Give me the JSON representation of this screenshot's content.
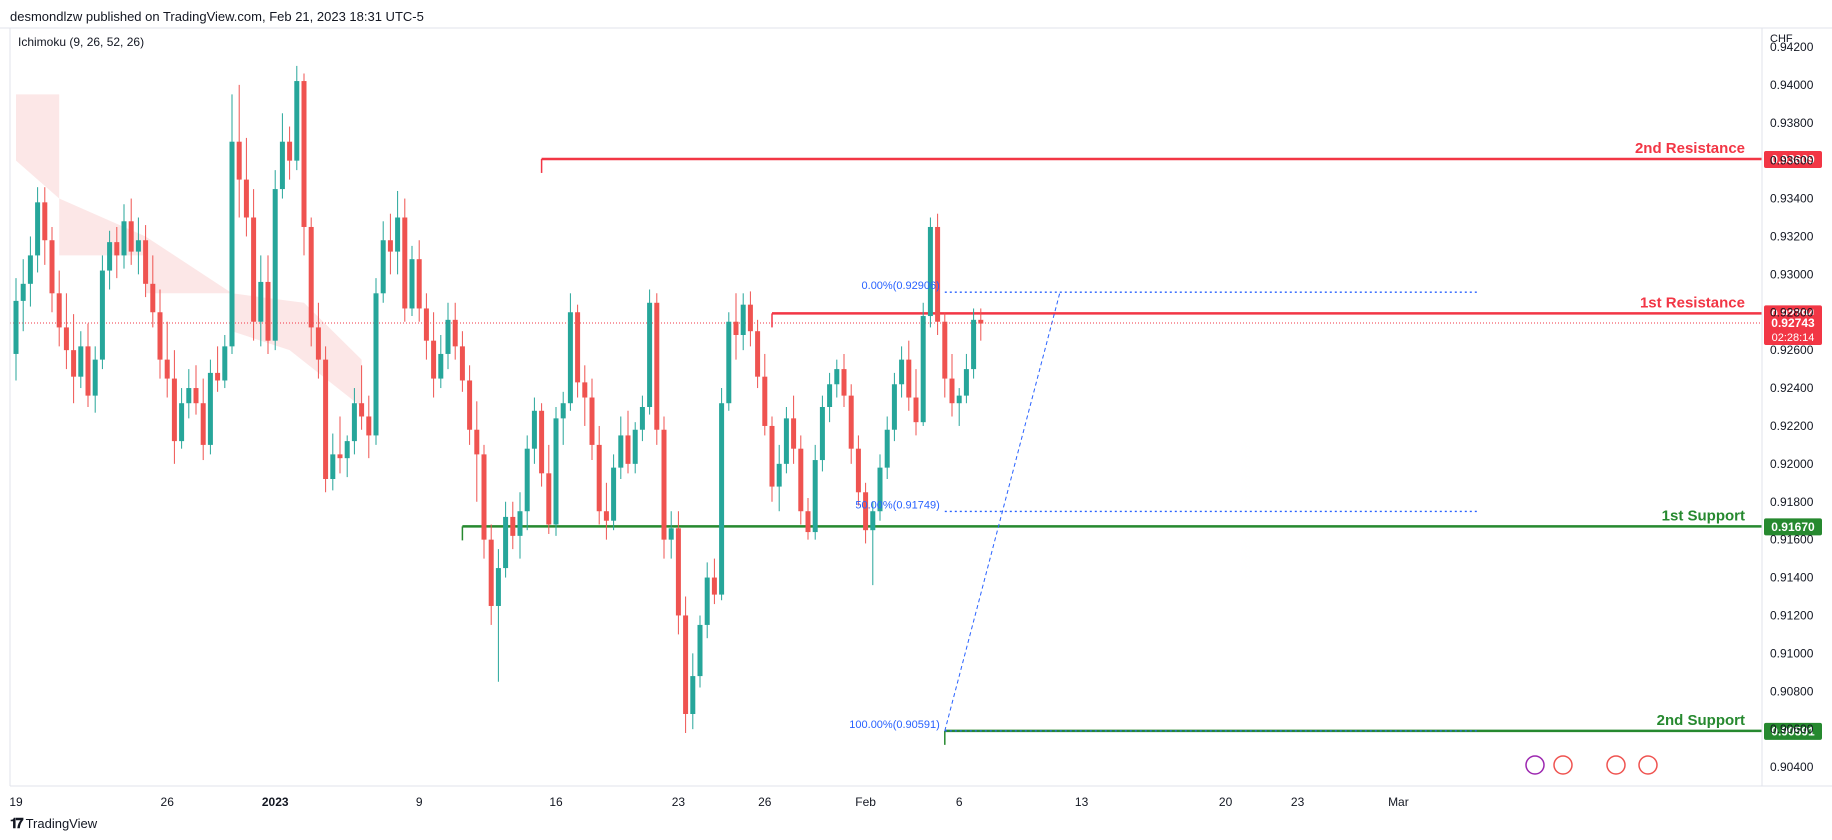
{
  "header": {
    "publisher": "desmondlzw published on TradingView.com, Feb 21, 2023 18:31 UTC-5",
    "indicator": "Ichimoku (9, 26, 52, 26)"
  },
  "footer": {
    "brand": "TradingView"
  },
  "colors": {
    "up": "#26a69a",
    "down": "#ef5350",
    "resistance": "#f23645",
    "support": "#26892f",
    "fib": "#2962ff",
    "cloud_red": "#fce4e4",
    "cloud_green": "#e6f3e9",
    "axis_text": "#131722",
    "current": "#f23645"
  },
  "chart_data": {
    "type": "candlestick",
    "currency": "CHF",
    "ylim": [
      0.903,
      0.943
    ],
    "y_ticks": [
      "0.94200",
      "0.94000",
      "0.93800",
      "0.93600",
      "0.93400",
      "0.93200",
      "0.93000",
      "0.92800",
      "0.92600",
      "0.92400",
      "0.92200",
      "0.92000",
      "0.91800",
      "0.91600",
      "0.91400",
      "0.91200",
      "0.91000",
      "0.90800",
      "0.90600",
      "0.90400"
    ],
    "x_ticks": [
      {
        "label": "19",
        "bar": 0
      },
      {
        "label": "26",
        "bar": 21
      },
      {
        "label": "2023",
        "bar": 36
      },
      {
        "label": "9",
        "bar": 56
      },
      {
        "label": "16",
        "bar": 75
      },
      {
        "label": "23",
        "bar": 92
      },
      {
        "label": "26",
        "bar": 104
      },
      {
        "label": "Feb",
        "bar": 118
      },
      {
        "label": "6",
        "bar": 131
      },
      {
        "label": "13",
        "bar": 148
      },
      {
        "label": "20",
        "bar": 168
      },
      {
        "label": "23",
        "bar": 178
      },
      {
        "label": "Mar",
        "bar": 192
      }
    ],
    "bar_start_date": "2022-12-17",
    "bar_hours": 4,
    "candles": [
      [
        0.9258,
        0.9298,
        0.9244,
        0.9286
      ],
      [
        0.9286,
        0.9308,
        0.927,
        0.9295
      ],
      [
        0.9295,
        0.932,
        0.9283,
        0.931
      ],
      [
        0.931,
        0.9346,
        0.9301,
        0.9338
      ],
      [
        0.9338,
        0.9346,
        0.9305,
        0.9318
      ],
      [
        0.9318,
        0.9325,
        0.928,
        0.929
      ],
      [
        0.929,
        0.9302,
        0.9262,
        0.9272
      ],
      [
        0.9272,
        0.929,
        0.925,
        0.926
      ],
      [
        0.926,
        0.9279,
        0.9232,
        0.9246
      ],
      [
        0.9246,
        0.927,
        0.924,
        0.9262
      ],
      [
        0.9262,
        0.9274,
        0.923,
        0.9236
      ],
      [
        0.9236,
        0.9262,
        0.9227,
        0.9255
      ],
      [
        0.9255,
        0.931,
        0.925,
        0.9302
      ],
      [
        0.9302,
        0.9323,
        0.9292,
        0.9317
      ],
      [
        0.9317,
        0.9325,
        0.9298,
        0.931
      ],
      [
        0.931,
        0.9337,
        0.9303,
        0.9328
      ],
      [
        0.9328,
        0.934,
        0.9305,
        0.9312
      ],
      [
        0.9312,
        0.933,
        0.93,
        0.9318
      ],
      [
        0.9318,
        0.9326,
        0.9288,
        0.9295
      ],
      [
        0.9295,
        0.931,
        0.9272,
        0.928
      ],
      [
        0.928,
        0.9292,
        0.9245,
        0.9255
      ],
      [
        0.9255,
        0.9275,
        0.9235,
        0.9245
      ],
      [
        0.9245,
        0.926,
        0.92,
        0.9212
      ],
      [
        0.9212,
        0.924,
        0.9208,
        0.9232
      ],
      [
        0.9232,
        0.925,
        0.9224,
        0.924
      ],
      [
        0.924,
        0.9252,
        0.9226,
        0.9232
      ],
      [
        0.9232,
        0.9245,
        0.9202,
        0.921
      ],
      [
        0.921,
        0.9255,
        0.9205,
        0.9248
      ],
      [
        0.9248,
        0.9262,
        0.9238,
        0.9244
      ],
      [
        0.9244,
        0.9268,
        0.924,
        0.9262
      ],
      [
        0.9262,
        0.9395,
        0.9258,
        0.937
      ],
      [
        0.937,
        0.94,
        0.933,
        0.935
      ],
      [
        0.935,
        0.9372,
        0.932,
        0.933
      ],
      [
        0.933,
        0.9345,
        0.9265,
        0.9275
      ],
      [
        0.9275,
        0.931,
        0.9262,
        0.9296
      ],
      [
        0.9296,
        0.931,
        0.9258,
        0.9265
      ],
      [
        0.9265,
        0.9355,
        0.926,
        0.9345
      ],
      [
        0.9345,
        0.9385,
        0.934,
        0.937
      ],
      [
        0.937,
        0.9378,
        0.935,
        0.936
      ],
      [
        0.936,
        0.941,
        0.9355,
        0.9402
      ],
      [
        0.9402,
        0.9406,
        0.931,
        0.9325
      ],
      [
        0.9325,
        0.933,
        0.9262,
        0.9272
      ],
      [
        0.9272,
        0.9285,
        0.9245,
        0.9255
      ],
      [
        0.9255,
        0.9262,
        0.9185,
        0.9192
      ],
      [
        0.9192,
        0.9216,
        0.9186,
        0.9205
      ],
      [
        0.9205,
        0.9225,
        0.9195,
        0.9203
      ],
      [
        0.9203,
        0.9215,
        0.9193,
        0.9212
      ],
      [
        0.9212,
        0.924,
        0.9205,
        0.9232
      ],
      [
        0.9232,
        0.9252,
        0.9218,
        0.9225
      ],
      [
        0.9225,
        0.9236,
        0.9203,
        0.9215
      ],
      [
        0.9215,
        0.9298,
        0.921,
        0.929
      ],
      [
        0.929,
        0.9328,
        0.9285,
        0.9318
      ],
      [
        0.9318,
        0.9332,
        0.93,
        0.9312
      ],
      [
        0.9312,
        0.9344,
        0.93,
        0.933
      ],
      [
        0.933,
        0.934,
        0.9275,
        0.9282
      ],
      [
        0.9282,
        0.9315,
        0.9278,
        0.9308
      ],
      [
        0.9308,
        0.9318,
        0.9275,
        0.9282
      ],
      [
        0.9282,
        0.929,
        0.9255,
        0.9265
      ],
      [
        0.9265,
        0.928,
        0.9235,
        0.9245
      ],
      [
        0.9245,
        0.9268,
        0.924,
        0.9258
      ],
      [
        0.9258,
        0.9285,
        0.925,
        0.9276
      ],
      [
        0.9276,
        0.9285,
        0.9255,
        0.9262
      ],
      [
        0.9262,
        0.927,
        0.9238,
        0.9244
      ],
      [
        0.9244,
        0.9252,
        0.921,
        0.9218
      ],
      [
        0.9218,
        0.9233,
        0.918,
        0.9205
      ],
      [
        0.9205,
        0.921,
        0.915,
        0.916
      ],
      [
        0.916,
        0.9168,
        0.9115,
        0.9125
      ],
      [
        0.9125,
        0.9155,
        0.9085,
        0.9145
      ],
      [
        0.9145,
        0.918,
        0.914,
        0.9172
      ],
      [
        0.9172,
        0.918,
        0.9155,
        0.9162
      ],
      [
        0.9162,
        0.9185,
        0.915,
        0.9175
      ],
      [
        0.9175,
        0.9215,
        0.9165,
        0.9208
      ],
      [
        0.9208,
        0.9235,
        0.92,
        0.9228
      ],
      [
        0.9228,
        0.9232,
        0.9188,
        0.9195
      ],
      [
        0.9195,
        0.921,
        0.9163,
        0.9168
      ],
      [
        0.9168,
        0.923,
        0.9162,
        0.9224
      ],
      [
        0.9224,
        0.9238,
        0.921,
        0.9232
      ],
      [
        0.9232,
        0.929,
        0.9228,
        0.928
      ],
      [
        0.928,
        0.9284,
        0.9235,
        0.9243
      ],
      [
        0.9243,
        0.9252,
        0.922,
        0.9235
      ],
      [
        0.9235,
        0.9245,
        0.9202,
        0.921
      ],
      [
        0.921,
        0.922,
        0.9168,
        0.9175
      ],
      [
        0.9175,
        0.919,
        0.916,
        0.917
      ],
      [
        0.917,
        0.9205,
        0.9165,
        0.9198
      ],
      [
        0.9198,
        0.9225,
        0.9192,
        0.9215
      ],
      [
        0.9215,
        0.9228,
        0.9195,
        0.92
      ],
      [
        0.92,
        0.9222,
        0.9195,
        0.9218
      ],
      [
        0.9218,
        0.9236,
        0.9212,
        0.923
      ],
      [
        0.923,
        0.9292,
        0.9226,
        0.9285
      ],
      [
        0.9285,
        0.929,
        0.921,
        0.9218
      ],
      [
        0.9218,
        0.9225,
        0.915,
        0.916
      ],
      [
        0.916,
        0.9175,
        0.915,
        0.9166
      ],
      [
        0.9166,
        0.9175,
        0.911,
        0.912
      ],
      [
        0.912,
        0.913,
        0.9058,
        0.9068
      ],
      [
        0.9068,
        0.91,
        0.906,
        0.9088
      ],
      [
        0.9088,
        0.912,
        0.9082,
        0.9115
      ],
      [
        0.9115,
        0.9148,
        0.9108,
        0.914
      ],
      [
        0.914,
        0.915,
        0.9126,
        0.9131
      ],
      [
        0.9131,
        0.924,
        0.9128,
        0.9232
      ],
      [
        0.9232,
        0.928,
        0.9228,
        0.9275
      ],
      [
        0.9275,
        0.929,
        0.9255,
        0.9268
      ],
      [
        0.9268,
        0.929,
        0.926,
        0.9284
      ],
      [
        0.9284,
        0.9291,
        0.9262,
        0.927
      ],
      [
        0.927,
        0.9276,
        0.924,
        0.9246
      ],
      [
        0.9246,
        0.9258,
        0.9215,
        0.922
      ],
      [
        0.922,
        0.9225,
        0.918,
        0.9188
      ],
      [
        0.9188,
        0.921,
        0.9175,
        0.92
      ],
      [
        0.92,
        0.923,
        0.9195,
        0.9224
      ],
      [
        0.9224,
        0.9236,
        0.92,
        0.9208
      ],
      [
        0.9208,
        0.9215,
        0.9168,
        0.9175
      ],
      [
        0.9175,
        0.9182,
        0.916,
        0.9164
      ],
      [
        0.9164,
        0.921,
        0.916,
        0.9202
      ],
      [
        0.9202,
        0.9236,
        0.9196,
        0.923
      ],
      [
        0.923,
        0.9248,
        0.9222,
        0.9242
      ],
      [
        0.9242,
        0.9255,
        0.9235,
        0.925
      ],
      [
        0.925,
        0.9258,
        0.923,
        0.9236
      ],
      [
        0.9236,
        0.9242,
        0.92,
        0.9208
      ],
      [
        0.9208,
        0.9215,
        0.9178,
        0.9185
      ],
      [
        0.9185,
        0.919,
        0.9158,
        0.9165
      ],
      [
        0.9165,
        0.918,
        0.9136,
        0.9175
      ],
      [
        0.9175,
        0.9205,
        0.917,
        0.9198
      ],
      [
        0.9198,
        0.9225,
        0.9192,
        0.9218
      ],
      [
        0.9218,
        0.9248,
        0.9212,
        0.9242
      ],
      [
        0.9242,
        0.9262,
        0.9235,
        0.9255
      ],
      [
        0.9255,
        0.9265,
        0.9228,
        0.9235
      ],
      [
        0.9235,
        0.925,
        0.9215,
        0.9222
      ],
      [
        0.9222,
        0.9285,
        0.922,
        0.9278
      ],
      [
        0.9278,
        0.933,
        0.9272,
        0.9325
      ],
      [
        0.9325,
        0.9332,
        0.9268,
        0.9275
      ],
      [
        0.9275,
        0.928,
        0.9235,
        0.9245
      ],
      [
        0.9245,
        0.9258,
        0.9225,
        0.9232
      ],
      [
        0.9232,
        0.924,
        0.922,
        0.9236
      ],
      [
        0.9236,
        0.9258,
        0.9232,
        0.925
      ],
      [
        0.925,
        0.9282,
        0.9245,
        0.9276
      ],
      [
        0.9276,
        0.9282,
        0.9265,
        0.9274
      ]
    ],
    "cloud_red": [
      [
        0,
        0.9395
      ],
      [
        6,
        0.9395
      ],
      [
        6,
        0.931
      ],
      [
        18,
        0.931
      ],
      [
        18,
        0.929
      ],
      [
        30,
        0.929
      ],
      [
        30,
        0.927
      ],
      [
        38,
        0.926
      ],
      [
        48,
        0.923
      ],
      [
        48,
        0.9255
      ],
      [
        40,
        0.9285
      ],
      [
        30,
        0.929
      ],
      [
        18,
        0.932
      ],
      [
        6,
        0.934
      ],
      [
        0,
        0.936
      ]
    ],
    "levels": [
      {
        "name": "2nd Resistance",
        "value": 0.93609,
        "label": "0.93609",
        "from_bar": 73,
        "kind": "resistance"
      },
      {
        "name": "1st Resistance",
        "value": 0.92794,
        "label": "0.92794",
        "from_bar": 105,
        "kind": "resistance"
      },
      {
        "name": "1st Support",
        "value": 0.9167,
        "label": "0.91670",
        "from_bar": 62,
        "kind": "support"
      },
      {
        "name": "2nd Support",
        "value": 0.90591,
        "label": "0.90591",
        "from_bar": 129,
        "kind": "support"
      }
    ],
    "current_price": {
      "value": 0.92743,
      "label": "0.92743",
      "countdown": "02:28:14"
    },
    "fib": {
      "anchor_bar": 129,
      "end_bar": 203,
      "levels": [
        {
          "label": "0.00%(0.92906)",
          "value": 0.92906
        },
        {
          "label": "50.00%(0.91749)",
          "value": 0.91749
        },
        {
          "label": "100.00%(0.90591)",
          "value": 0.90591
        }
      ]
    }
  }
}
